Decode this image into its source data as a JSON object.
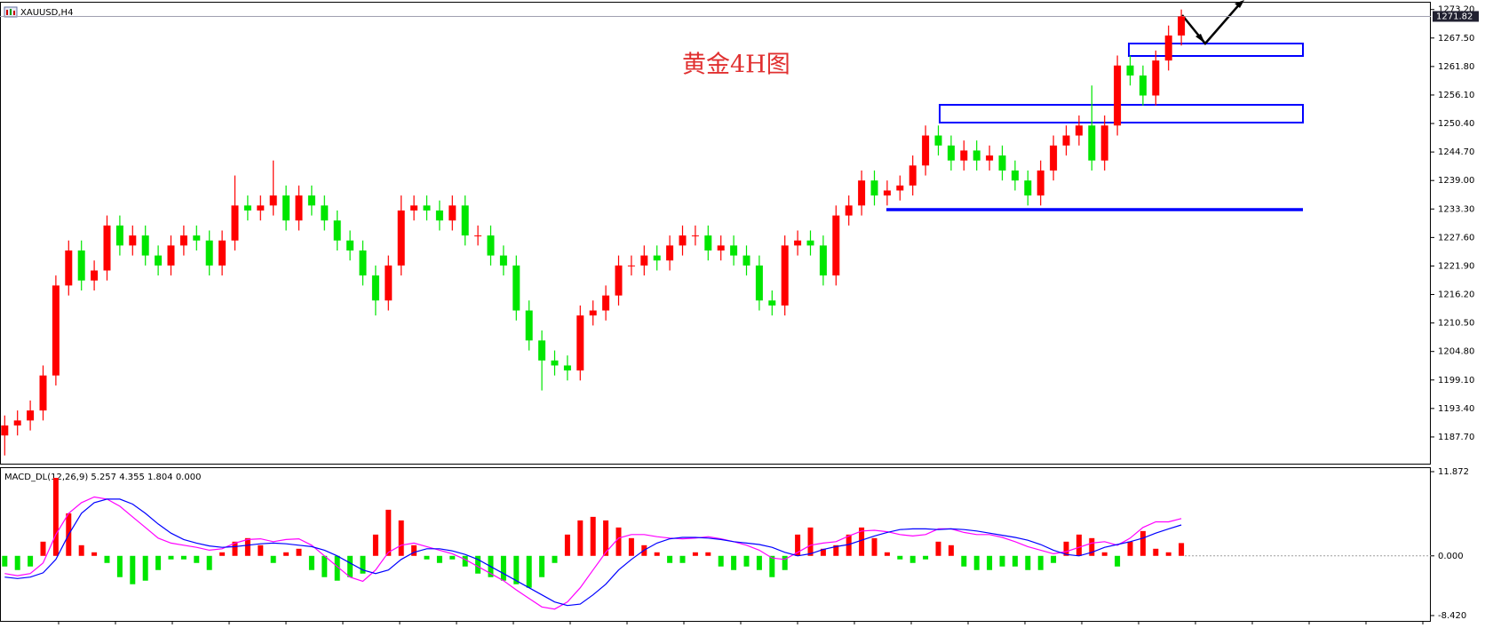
{
  "chart_data": [
    {
      "type": "candlestick",
      "title": "XAUUSD,H4",
      "annotation": "黄金4H图",
      "up_color": "#ff0000",
      "down_color": "#00e600",
      "open": [
        1188,
        1190,
        1191,
        1193,
        1200,
        1218,
        1225,
        1219,
        1221,
        1230,
        1226,
        1228,
        1224,
        1222,
        1226,
        1228,
        1227,
        1222,
        1227,
        1234,
        1233,
        1234,
        1236,
        1231,
        1236,
        1234,
        1231,
        1227,
        1225,
        1220,
        1215,
        1222,
        1233,
        1234,
        1233,
        1231,
        1234,
        1228,
        1228,
        1224,
        1222,
        1213,
        1207,
        1203,
        1202,
        1201,
        1212,
        1213,
        1216,
        1222,
        1222,
        1224,
        1223,
        1226,
        1228,
        1228,
        1225,
        1226,
        1224,
        1222,
        1215,
        1214,
        1226,
        1227,
        1226,
        1220,
        1232,
        1234,
        1239,
        1236,
        1237,
        1238,
        1242,
        1248,
        1246,
        1243,
        1245,
        1243,
        1244,
        1241,
        1239,
        1236,
        1241,
        1246,
        1248,
        1250,
        1243,
        1250,
        1262,
        1260,
        1256,
        1263,
        1268
      ],
      "high": [
        1192,
        1193,
        1195,
        1202,
        1220,
        1227,
        1227,
        1223,
        1232,
        1232,
        1230,
        1230,
        1226,
        1228,
        1230,
        1230,
        1229,
        1229,
        1240,
        1236,
        1236,
        1243,
        1238,
        1238,
        1238,
        1236,
        1233,
        1229,
        1227,
        1222,
        1224,
        1236,
        1236,
        1236,
        1235,
        1236,
        1236,
        1230,
        1230,
        1226,
        1224,
        1215,
        1209,
        1205,
        1204,
        1214,
        1215,
        1218,
        1224,
        1224,
        1226,
        1226,
        1228,
        1230,
        1230,
        1230,
        1228,
        1228,
        1226,
        1224,
        1217,
        1228,
        1229,
        1229,
        1228,
        1234,
        1236,
        1241,
        1241,
        1239,
        1240,
        1244,
        1250,
        1250,
        1248,
        1247,
        1247,
        1246,
        1246,
        1243,
        1241,
        1243,
        1248,
        1250,
        1252,
        1258,
        1252,
        1264,
        1264,
        1262,
        1265,
        1270,
        1273.2
      ],
      "low": [
        1184,
        1188,
        1189,
        1191,
        1198,
        1216,
        1217,
        1217,
        1219,
        1224,
        1224,
        1222,
        1220,
        1220,
        1224,
        1225,
        1220,
        1220,
        1225,
        1231,
        1231,
        1232,
        1229,
        1229,
        1232,
        1229,
        1225,
        1223,
        1218,
        1212,
        1213,
        1220,
        1231,
        1231,
        1229,
        1229,
        1226,
        1226,
        1222,
        1220,
        1211,
        1205,
        1197,
        1200,
        1199,
        1199,
        1210,
        1211,
        1214,
        1220,
        1220,
        1221,
        1221,
        1224,
        1226,
        1223,
        1223,
        1222,
        1220,
        1213,
        1212,
        1212,
        1224,
        1224,
        1218,
        1218,
        1230,
        1232,
        1234,
        1234,
        1235,
        1236,
        1240,
        1244,
        1241,
        1241,
        1241,
        1241,
        1239,
        1237,
        1234,
        1234,
        1239,
        1244,
        1246,
        1241,
        1241,
        1248,
        1258,
        1254,
        1254,
        1261,
        1266
      ],
      "close": [
        1190,
        1191,
        1193,
        1200,
        1218,
        1225,
        1219,
        1221,
        1230,
        1226,
        1228,
        1224,
        1222,
        1226,
        1228,
        1227,
        1222,
        1227,
        1234,
        1233,
        1234,
        1236,
        1231,
        1236,
        1234,
        1231,
        1227,
        1225,
        1220,
        1215,
        1222,
        1233,
        1234,
        1233,
        1231,
        1234,
        1228,
        1228,
        1224,
        1222,
        1213,
        1207,
        1203,
        1202,
        1201,
        1212,
        1213,
        1216,
        1222,
        1222,
        1224,
        1223,
        1226,
        1228,
        1228,
        1225,
        1226,
        1224,
        1222,
        1215,
        1214,
        1226,
        1227,
        1226,
        1220,
        1232,
        1234,
        1239,
        1236,
        1237,
        1238,
        1242,
        1248,
        1246,
        1243,
        1245,
        1243,
        1244,
        1241,
        1239,
        1236,
        1241,
        1246,
        1248,
        1250,
        1243,
        1250,
        1262,
        1260,
        1256,
        1263,
        1268,
        1271.82
      ],
      "ylim": [
        1182.18,
        1274.57
      ],
      "yticks": [
        {
          "value": 1273.2,
          "label": "1273.20"
        },
        {
          "value": 1267.5,
          "label": "1267.50"
        },
        {
          "value": 1261.8,
          "label": "1261.80"
        },
        {
          "value": 1256.1,
          "label": "1256.10"
        },
        {
          "value": 1250.4,
          "label": "1250.40"
        },
        {
          "value": 1244.7,
          "label": "1244.70"
        },
        {
          "value": 1239,
          "label": "1239.00"
        },
        {
          "value": 1233.3,
          "label": "1233.30"
        },
        {
          "value": 1227.6,
          "label": "1227.60"
        },
        {
          "value": 1221.9,
          "label": "1221.90"
        },
        {
          "value": 1216.2,
          "label": "1216.20"
        },
        {
          "value": 1210.5,
          "label": "1210.50"
        },
        {
          "value": 1204.8,
          "label": "1204.80"
        },
        {
          "value": 1199.1,
          "label": "1199.10"
        },
        {
          "value": 1193.4,
          "label": "1193.40"
        },
        {
          "value": 1187.7,
          "label": "1187.70"
        }
      ]
    },
    {
      "type": "macd",
      "title": "MACD_DL(12,26,9) 5.257 4.355 1.804 0.000",
      "up_color": "#ff0000",
      "down_color": "#00e600",
      "main_color": "#ff00ff",
      "signal_color": "#0000ff",
      "histogram": [
        -1.5,
        -2,
        -1.5,
        2,
        11,
        6,
        1.5,
        0.5,
        -1,
        -3,
        -4,
        -3.5,
        -2,
        -0.5,
        -0.5,
        -1,
        -2,
        0.5,
        2,
        2.5,
        1.5,
        -1,
        0.5,
        1,
        -2,
        -3,
        -3.5,
        -3,
        -2.5,
        3,
        6.5,
        5,
        1.5,
        -0.5,
        -1,
        -0.5,
        -1.5,
        -2.5,
        -3,
        -3.5,
        -4,
        -4.5,
        -3,
        -1,
        3,
        5,
        5.5,
        5,
        4,
        2.5,
        1.5,
        0.5,
        -1,
        -1,
        0.5,
        0.5,
        -1.5,
        -2,
        -1.5,
        -2,
        -3,
        -2,
        3,
        4,
        1,
        1.5,
        3,
        4,
        2.5,
        0.5,
        -0.5,
        -1,
        -0.5,
        2,
        1.5,
        -1.5,
        -2,
        -2,
        -1.5,
        -1.5,
        -2,
        -2,
        -1,
        2,
        3,
        2.5,
        0.5,
        -1.5,
        2,
        3.5,
        1,
        0.5,
        1.804
      ],
      "main": [
        -2.5,
        -2.8,
        -2.5,
        -1,
        3,
        6,
        7.5,
        8.3,
        8,
        7,
        5.5,
        4,
        2.5,
        1.8,
        1.5,
        1.2,
        0.8,
        1,
        1.8,
        2.3,
        2.4,
        2,
        2.3,
        2.4,
        1.5,
        0,
        -1.5,
        -3,
        -3.6,
        -2,
        0.5,
        1.5,
        1.8,
        1.3,
        0.8,
        0.3,
        -0.5,
        -1.5,
        -2.5,
        -3.5,
        -4.8,
        -6,
        -7.2,
        -7.5,
        -6.5,
        -4.5,
        -2,
        0.5,
        2.5,
        3,
        3,
        2.7,
        2.5,
        2.4,
        2.5,
        2.7,
        2.4,
        2,
        1.5,
        0.8,
        -0.3,
        -0.5,
        0.5,
        1.5,
        1.8,
        2,
        2.8,
        3.5,
        3.6,
        3.4,
        3,
        2.8,
        3,
        3.8,
        3.8,
        3.3,
        3,
        3,
        2.6,
        2,
        1.3,
        0.8,
        0.3,
        0.6,
        1.2,
        1.8,
        2,
        1.5,
        2.5,
        4,
        4.8,
        4.8,
        5.257
      ],
      "signal": [
        -3,
        -3.2,
        -3,
        -2.4,
        -0.5,
        3,
        6,
        7.5,
        8,
        8,
        7.3,
        6,
        4.5,
        3.2,
        2.3,
        1.8,
        1.4,
        1.2,
        1.3,
        1.5,
        1.7,
        1.8,
        1.7,
        1.5,
        1.3,
        0.8,
        0,
        -1,
        -2,
        -2.5,
        -2,
        -0.5,
        0.5,
        1,
        1,
        0.7,
        0.2,
        -0.5,
        -1.5,
        -2.5,
        -3.5,
        -4.5,
        -5.5,
        -6.5,
        -7,
        -6.8,
        -5.5,
        -4,
        -2,
        -0.5,
        0.8,
        1.8,
        2.4,
        2.6,
        2.6,
        2.5,
        2.3,
        2,
        1.8,
        1.6,
        1.2,
        0.5,
        0,
        0.3,
        0.9,
        1.3,
        1.6,
        2.2,
        2.8,
        3.3,
        3.7,
        3.8,
        3.8,
        3.7,
        3.8,
        3.7,
        3.5,
        3.2,
        2.9,
        2.6,
        2.2,
        1.6,
        0.8,
        0.2,
        0,
        0.5,
        1.2,
        1.6,
        2,
        2.5,
        3.2,
        3.8,
        4.355
      ],
      "ylim": [
        -8.42,
        11.872
      ],
      "yticks": [
        11.872,
        {
          "value": 0,
          "label": "0.000"
        },
        {
          "value": -8.42,
          "label": "-8.420"
        }
      ]
    }
  ]
}
